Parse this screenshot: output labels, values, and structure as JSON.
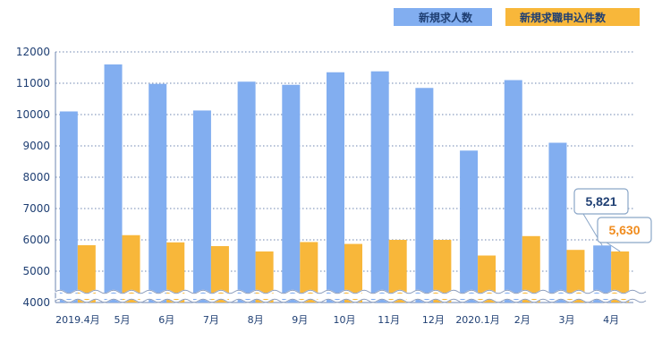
{
  "chart_data": {
    "type": "bar",
    "categories": [
      "2019.4月",
      "5月",
      "6月",
      "7月",
      "8月",
      "9月",
      "10月",
      "11月",
      "12月",
      "2020.1月",
      "2月",
      "3月",
      "4月"
    ],
    "series": [
      {
        "name": "新規求人数",
        "color": "#82aef0",
        "values": [
          10100,
          11600,
          10980,
          10130,
          11050,
          10950,
          11350,
          11380,
          10850,
          8850,
          11100,
          9100,
          5821
        ]
      },
      {
        "name": "新規求職申込件数",
        "color": "#f8b73a",
        "values": [
          5830,
          6150,
          5920,
          5800,
          5630,
          5930,
          5870,
          6000,
          6000,
          5500,
          6120,
          5680,
          5630
        ]
      }
    ],
    "yticks": [
      4000,
      5000,
      6000,
      7000,
      8000,
      9000,
      10000,
      11000,
      12000
    ],
    "ylim": [
      4000,
      12000
    ],
    "axis_break": true,
    "grid": "dotted horizontal",
    "legend_position": "top-right",
    "annotations": [
      {
        "text": "5,821",
        "series": 0,
        "category": "4月",
        "color": "#1f3f73"
      },
      {
        "text": "5,630",
        "series": 1,
        "category": "4月",
        "color": "#f08c1e"
      }
    ]
  }
}
